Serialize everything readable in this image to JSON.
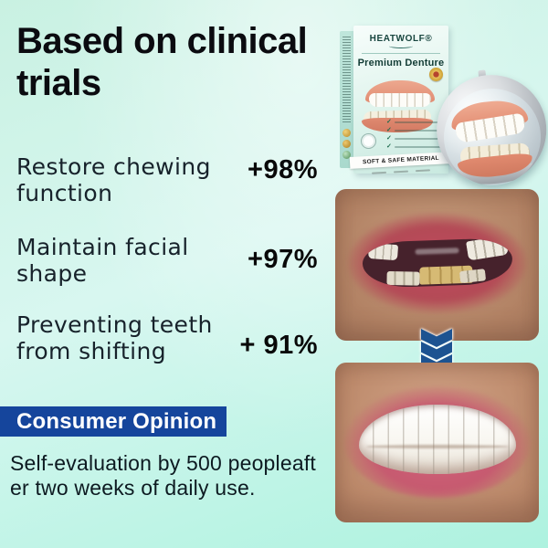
{
  "background": {
    "top_color": "#c9f1e2",
    "bottom_color": "#adf2df"
  },
  "headline": {
    "lines": [
      "Based on clinical",
      "trials"
    ]
  },
  "stats": [
    {
      "label_lines": [
        "Restore chewing",
        "function"
      ],
      "value": "+98%"
    },
    {
      "label_lines": [
        "Maintain facial",
        "shape"
      ],
      "value": "+97%"
    },
    {
      "label_lines": [
        "Preventing teeth",
        "from shifting"
      ],
      "value": "+ 91%"
    }
  ],
  "product_box": {
    "brand": "HEATWOLF®",
    "name": "Premium Denture",
    "strip": "SOFT & SAFE MATERIAL"
  },
  "icons": {
    "check": "✓"
  },
  "consumer_opinion": {
    "banner": "Consumer Opinion",
    "body_lines": [
      "Self-evaluation by 500 peopleaft",
      "er two weeks of daily use."
    ]
  },
  "colors": {
    "banner_blue": "#15459c",
    "chevron_blue": "#1d5391",
    "headline_text": "#0b0b10"
  }
}
